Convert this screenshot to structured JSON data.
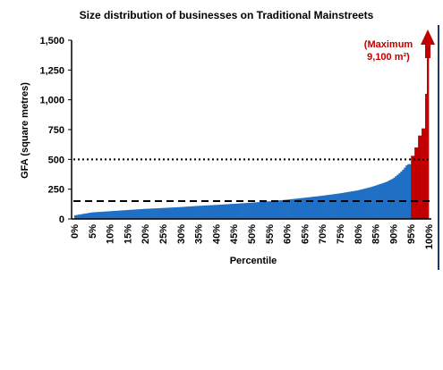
{
  "colors": {
    "bulk": "#1f6fc5",
    "top": "#c00000",
    "axis": "#000000",
    "frame_edge": "#1f3a6e"
  },
  "chart_data": {
    "type": "bar",
    "title": "Size distribution of businesses on Traditional Mainstreets",
    "xlabel": "Percentile",
    "ylabel": "GFA (square metres)",
    "ylim": [
      0,
      1500
    ],
    "yticks": [
      0,
      250,
      500,
      750,
      1000,
      1250,
      1500
    ],
    "ytick_labels": [
      "0",
      "250",
      "500",
      "750",
      "1,000",
      "1,250",
      "1,500"
    ],
    "xticks": [
      0,
      5,
      10,
      15,
      20,
      25,
      30,
      35,
      40,
      45,
      50,
      55,
      60,
      65,
      70,
      75,
      80,
      85,
      90,
      95,
      100
    ],
    "xtick_labels": [
      "0%",
      "5%",
      "10%",
      "15%",
      "20%",
      "25%",
      "30%",
      "35%",
      "40%",
      "45%",
      "50%",
      "55%",
      "60%",
      "65%",
      "70%",
      "75%",
      "80%",
      "85%",
      "90%",
      "95%",
      "100%"
    ],
    "series": [
      {
        "color": "#1f6fc5",
        "x": [
          0,
          5,
          10,
          15,
          20,
          25,
          30,
          35,
          40,
          45,
          50,
          55,
          60,
          65,
          70,
          75,
          80,
          82,
          84,
          86,
          88,
          90,
          91,
          92,
          93,
          94
        ],
        "values": [
          30,
          55,
          65,
          75,
          85,
          92,
          100,
          110,
          118,
          127,
          137,
          148,
          162,
          178,
          195,
          215,
          240,
          255,
          270,
          290,
          310,
          340,
          365,
          390,
          420,
          460
        ]
      },
      {
        "color": "#c00000",
        "x": [
          95,
          96,
          97,
          98,
          99,
          99.5
        ],
        "values": [
          530,
          600,
          700,
          760,
          1050,
          1350
        ]
      }
    ],
    "reference_lines": [
      {
        "value": 500,
        "style": "dotted"
      },
      {
        "value": 150,
        "style": "dashed"
      }
    ],
    "annotation": {
      "line1": "(Maximum",
      "line2": "9,100 m²)"
    }
  }
}
